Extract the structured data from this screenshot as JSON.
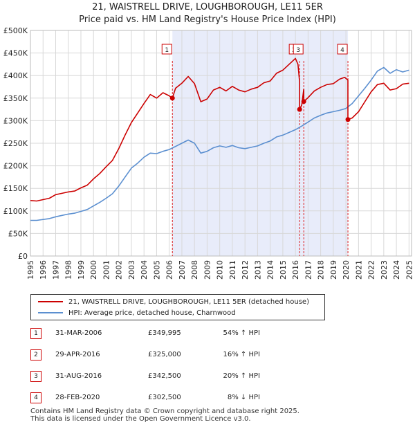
{
  "chart_data": {
    "type": "line",
    "title": "21, WAISTRELL DRIVE, LOUGHBOROUGH, LE11 5ER",
    "subtitle": "Price paid vs. HM Land Registry's House Price Index (HPI)",
    "ylim": [
      0,
      500000
    ],
    "xlim": [
      1995,
      2025.2
    ],
    "y_ticks": [
      0,
      50000,
      100000,
      150000,
      200000,
      250000,
      300000,
      350000,
      400000,
      450000,
      500000
    ],
    "y_tick_labels": [
      "£0",
      "£50K",
      "£100K",
      "£150K",
      "£200K",
      "£250K",
      "£300K",
      "£350K",
      "£400K",
      "£450K",
      "£500K"
    ],
    "x_ticks": [
      1995,
      1996,
      1997,
      1998,
      1999,
      2000,
      2001,
      2002,
      2003,
      2004,
      2005,
      2006,
      2007,
      2008,
      2009,
      2010,
      2011,
      2012,
      2013,
      2014,
      2015,
      2016,
      2017,
      2018,
      2019,
      2020,
      2021,
      2022,
      2023,
      2024,
      2025
    ],
    "x_tick_labels": [
      "1995",
      "1996",
      "1997",
      "1998",
      "1999",
      "2000",
      "2001",
      "2002",
      "2003",
      "2004",
      "2005",
      "2006",
      "2007",
      "2008",
      "2009",
      "2010",
      "2011",
      "2012",
      "2013",
      "2014",
      "2015",
      "2016",
      "2017",
      "2018",
      "2019",
      "2020",
      "2021",
      "2022",
      "2023",
      "2024",
      "2025"
    ],
    "shaded_region": [
      2006.25,
      2020.16
    ],
    "series": [
      {
        "name": "21, WAISTRELL DRIVE, LOUGHBOROUGH, LE11 5ER (detached house)",
        "color": "#cc0000",
        "x": [
          1995,
          1995.5,
          1996,
          1996.5,
          1997,
          1997.5,
          1998,
          1998.5,
          1999,
          1999.5,
          2000,
          2000.5,
          2001,
          2001.5,
          2002,
          2002.5,
          2003,
          2003.5,
          2004,
          2004.5,
          2005,
          2005.5,
          2006,
          2006.25,
          2006.25,
          2006.5,
          2007,
          2007.5,
          2008,
          2008.5,
          2009,
          2009.5,
          2010,
          2010.5,
          2011,
          2011.5,
          2012,
          2012.5,
          2013,
          2013.5,
          2014,
          2014.5,
          2015,
          2015.5,
          2016,
          2016.2,
          2016.33,
          2016.33,
          2016.5,
          2016.66,
          2016.66,
          2017,
          2017.5,
          2018,
          2018.5,
          2019,
          2019.5,
          2019.9,
          2020.16,
          2020.16,
          2020.5,
          2021,
          2021.5,
          2022,
          2022.5,
          2023,
          2023.5,
          2024,
          2024.5,
          2025
        ],
        "y": [
          123000,
          122000,
          125000,
          128000,
          136000,
          139000,
          142000,
          144000,
          151000,
          157000,
          171000,
          183000,
          198000,
          212000,
          238000,
          268000,
          296000,
          317000,
          338000,
          358000,
          350000,
          362000,
          355000,
          349995,
          349995,
          372000,
          383000,
          398000,
          382000,
          342000,
          348000,
          368000,
          374000,
          366000,
          376000,
          368000,
          364000,
          370000,
          374000,
          384000,
          388000,
          405000,
          412000,
          425000,
          438000,
          425000,
          385000,
          325000,
          335000,
          370000,
          342500,
          351000,
          366000,
          374000,
          380000,
          382000,
          392000,
          396000,
          390000,
          302500,
          306000,
          320000,
          342000,
          364000,
          380000,
          383000,
          368000,
          371000,
          381000,
          383000
        ]
      },
      {
        "name": "HPI: Average price, detached house, Charnwood",
        "color": "#5b8fd0",
        "x": [
          1995,
          1995.5,
          1996,
          1996.5,
          1997,
          1997.5,
          1998,
          1998.5,
          1999,
          1999.5,
          2000,
          2000.5,
          2001,
          2001.5,
          2002,
          2002.5,
          2003,
          2003.5,
          2004,
          2004.5,
          2005,
          2005.5,
          2006,
          2006.5,
          2007,
          2007.5,
          2008,
          2008.5,
          2009,
          2009.5,
          2010,
          2010.5,
          2011,
          2011.5,
          2012,
          2012.5,
          2013,
          2013.5,
          2014,
          2014.5,
          2015,
          2015.5,
          2016,
          2016.5,
          2017,
          2017.5,
          2018,
          2018.5,
          2019,
          2019.5,
          2020,
          2020.5,
          2021,
          2021.5,
          2022,
          2022.5,
          2023,
          2023.5,
          2024,
          2024.5,
          2025
        ],
        "y": [
          79000,
          79000,
          81000,
          83000,
          87000,
          90000,
          93000,
          95000,
          99000,
          103000,
          111000,
          119000,
          128000,
          138000,
          155000,
          175000,
          195000,
          206000,
          219000,
          228000,
          227000,
          232000,
          236000,
          243000,
          250000,
          257000,
          250000,
          228000,
          232000,
          240000,
          244000,
          241000,
          245000,
          240000,
          238000,
          241000,
          244000,
          250000,
          255000,
          264000,
          268000,
          274000,
          280000,
          288000,
          297000,
          306000,
          312000,
          317000,
          320000,
          323000,
          327000,
          338000,
          355000,
          372000,
          390000,
          410000,
          418000,
          405000,
          413000,
          408000,
          412000
        ]
      }
    ],
    "sale_points": [
      {
        "x": 2006.25,
        "y": 349995
      },
      {
        "x": 2016.33,
        "y": 325000
      },
      {
        "x": 2016.66,
        "y": 342500
      },
      {
        "x": 2020.16,
        "y": 302500
      }
    ],
    "markers": [
      {
        "label": "1",
        "x": 2006.25
      },
      {
        "label": "2",
        "x": 2016.33
      },
      {
        "label": "3",
        "x": 2016.66
      },
      {
        "label": "4",
        "x": 2020.16
      }
    ],
    "legend_position": "bottom"
  },
  "legend": {
    "property": "21, WAISTRELL DRIVE, LOUGHBOROUGH, LE11 5ER (detached house)",
    "hpi": "HPI: Average price, detached house, Charnwood"
  },
  "colors": {
    "property": "#cc0000",
    "hpi": "#5b8fd0",
    "shade": "#e8ecfa"
  },
  "transactions": [
    {
      "num": "1",
      "date": "31-MAR-2006",
      "price": "£349,995",
      "hpi": "54% ↑ HPI"
    },
    {
      "num": "2",
      "date": "29-APR-2016",
      "price": "£325,000",
      "hpi": "16% ↑ HPI"
    },
    {
      "num": "3",
      "date": "31-AUG-2016",
      "price": "£342,500",
      "hpi": "20% ↑ HPI"
    },
    {
      "num": "4",
      "date": "28-FEB-2020",
      "price": "£302,500",
      "hpi": "8% ↓ HPI"
    }
  ],
  "footer": {
    "line1": "Contains HM Land Registry data © Crown copyright and database right 2025.",
    "line2": "This data is licensed under the Open Government Licence v3.0."
  }
}
